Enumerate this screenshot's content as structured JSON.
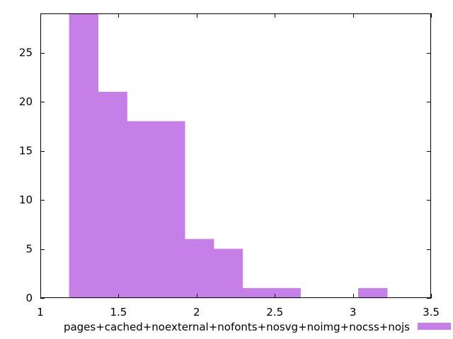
{
  "chart_data": {
    "type": "bar",
    "title": "",
    "xlabel": "",
    "ylabel": "",
    "xlim": [
      1,
      3.5
    ],
    "ylim": [
      0,
      29
    ],
    "xticks": [
      "1",
      "1.5",
      "2",
      "2.5",
      "3",
      "3.5"
    ],
    "yticks": [
      "0",
      "5",
      "10",
      "15",
      "20",
      "25"
    ],
    "bars": [
      {
        "x0": 1.185,
        "x1": 1.37,
        "value": 29
      },
      {
        "x0": 1.37,
        "x1": 1.555,
        "value": 21
      },
      {
        "x0": 1.555,
        "x1": 1.74,
        "value": 18
      },
      {
        "x0": 1.74,
        "x1": 1.925,
        "value": 18
      },
      {
        "x0": 1.925,
        "x1": 2.11,
        "value": 6
      },
      {
        "x0": 2.11,
        "x1": 2.295,
        "value": 5
      },
      {
        "x0": 2.295,
        "x1": 2.48,
        "value": 1
      },
      {
        "x0": 2.48,
        "x1": 2.665,
        "value": 1
      },
      {
        "x0": 3.035,
        "x1": 3.22,
        "value": 1
      }
    ],
    "series": [
      {
        "name": "pages+cached+noexternal+nofonts+nosvg+noimg+nocss+nojs",
        "color": "#c77fe8"
      }
    ],
    "legend_position": "bottom",
    "grid": false
  }
}
